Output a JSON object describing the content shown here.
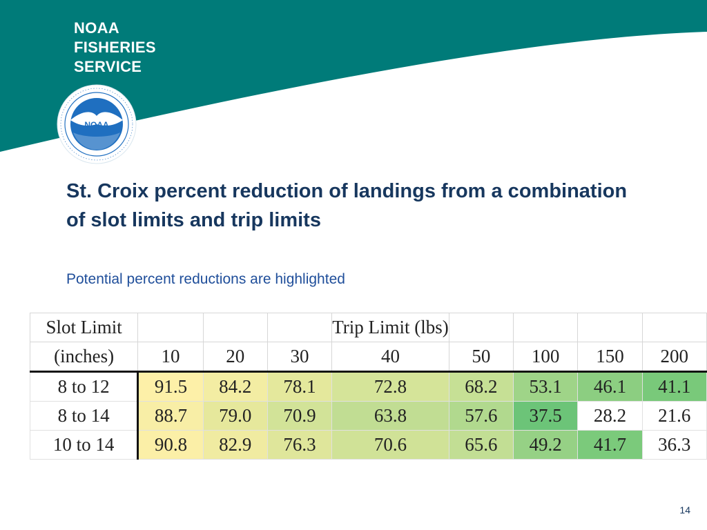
{
  "header": {
    "org_lines": [
      "NOAA",
      "FISHERIES",
      "SERVICE"
    ],
    "logo": {
      "icon": "noaa-seal-icon",
      "wordmark": "NOAA",
      "ring_text": "NATIONAL OCEANIC AND ATMOSPHERIC ADMINISTRATION • U.S. DEPARTMENT OF COMMERCE"
    },
    "colors": {
      "banner": "#007b79",
      "logo_blue": "#1f6fc0"
    }
  },
  "title": "St. Croix percent reduction of landings from a combination of slot limits and trip limits",
  "subtitle": "Potential percent reductions are highlighted",
  "table": {
    "row_header_top": "Slot Limit",
    "row_header_bottom": "(inches)",
    "group_header": "Trip Limit (lbs)",
    "columns": [
      "10",
      "20",
      "30",
      "40",
      "50",
      "100",
      "150",
      "200"
    ],
    "rows": [
      {
        "label": "8 to 12",
        "values": [
          "91.5",
          "84.2",
          "78.1",
          "72.8",
          "68.2",
          "53.1",
          "46.1",
          "41.1"
        ],
        "colors": [
          "#fdf0a8",
          "#f3eda3",
          "#e4e89c",
          "#d5e499",
          "#c6e095",
          "#9fd488",
          "#8cce81",
          "#79c97a"
        ]
      },
      {
        "label": "8 to 14",
        "values": [
          "88.7",
          "79.0",
          "70.9",
          "63.8",
          "57.6",
          "37.5",
          "28.2",
          "21.6"
        ],
        "colors": [
          "#f8eea6",
          "#e6e89c",
          "#d2e398",
          "#c1dd93",
          "#b1d98e",
          "#6cc478",
          null,
          null
        ]
      },
      {
        "label": "10 to 14",
        "values": [
          "90.8",
          "82.9",
          "76.3",
          "70.6",
          "65.6",
          "49.2",
          "41.7",
          "36.3"
        ],
        "colors": [
          "#fbefa7",
          "#f0eba1",
          "#dfe69b",
          "#d0e297",
          "#c2de94",
          "#96d185",
          "#7bca7b",
          null
        ]
      }
    ]
  },
  "page_number": "14"
}
